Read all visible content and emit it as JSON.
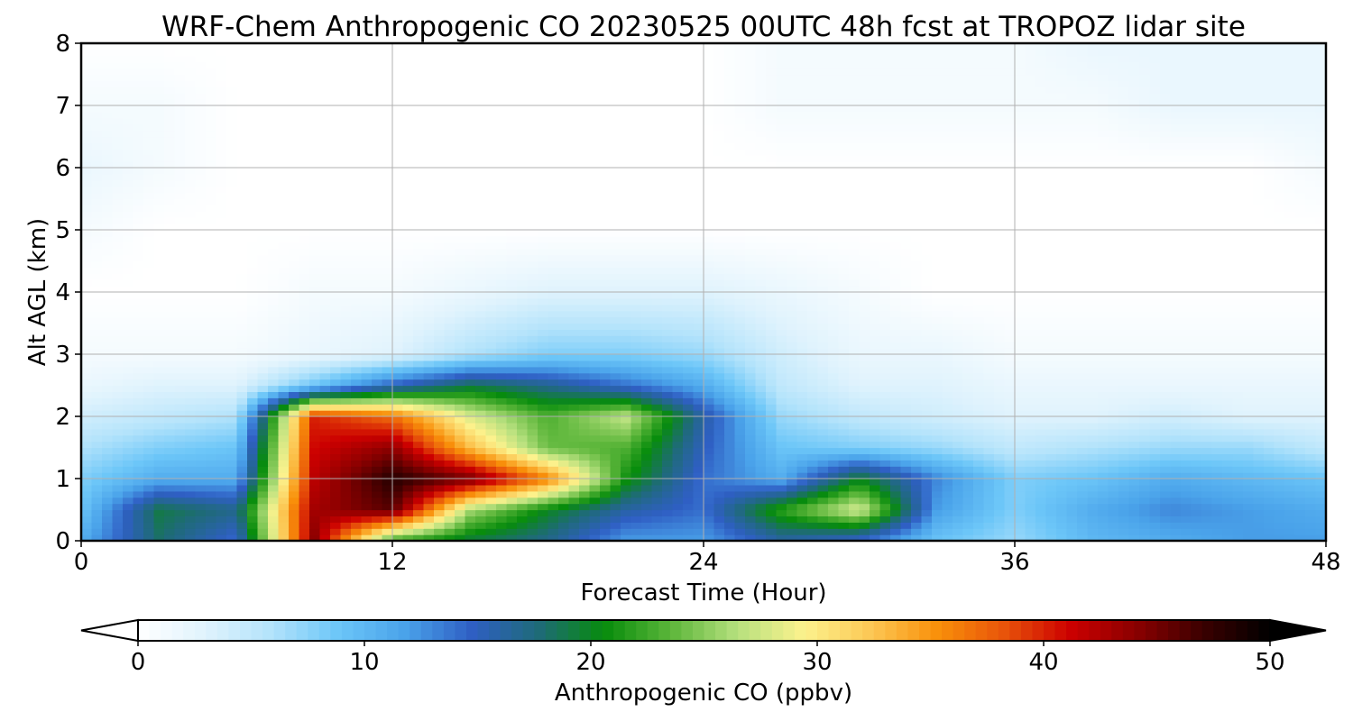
{
  "chart_data": {
    "type": "heatmap",
    "title": "WRF-Chem Anthropogenic CO  20230525 00UTC 48h fcst at TROPOZ lidar site",
    "xlabel": "Forecast Time (Hour)",
    "ylabel": "Alt AGL (km)",
    "xlim": [
      0,
      48
    ],
    "ylim": [
      0,
      8
    ],
    "xticks": [
      0,
      12,
      24,
      36,
      48
    ],
    "yticks": [
      0,
      1,
      2,
      3,
      4,
      5,
      6,
      7,
      8
    ],
    "grid": true,
    "colorbar": {
      "label": "Anthropogenic CO  (ppbv)",
      "range": [
        0,
        50
      ],
      "ticks": [
        0,
        10,
        20,
        30,
        40,
        50
      ],
      "extend": "both",
      "colors": [
        "#ffffff",
        "#e0f3fd",
        "#b3e3fb",
        "#6cc6f8",
        "#4aa3ea",
        "#2f5fc4",
        "#1f6a7a",
        "#078c0c",
        "#5cb63a",
        "#b6e07e",
        "#fcf28d",
        "#fcc855",
        "#f9900a",
        "#e8540a",
        "#cc0000",
        "#8a0000",
        "#3a0000",
        "#000000"
      ]
    },
    "times": [
      0,
      3,
      6,
      9,
      12,
      15,
      18,
      21,
      24,
      27,
      30,
      33,
      36,
      39,
      42,
      45,
      48
    ],
    "altitudes_km": [
      0,
      0.5,
      1,
      1.5,
      2,
      2.5,
      3,
      4,
      5,
      6,
      7,
      8
    ],
    "values_ppbv": [
      [
        11,
        18,
        14,
        44,
        22,
        19,
        17,
        12,
        12,
        16,
        14,
        9,
        7,
        10,
        11,
        12,
        12
      ],
      [
        9,
        19,
        17,
        43,
        46,
        26,
        20,
        16,
        14,
        22,
        28,
        12,
        8,
        11,
        13,
        12,
        11
      ],
      [
        8,
        11,
        11,
        42,
        48,
        45,
        36,
        21,
        14,
        11,
        20,
        13,
        8,
        9,
        11,
        10,
        9
      ],
      [
        6,
        8,
        9,
        41,
        44,
        33,
        24,
        23,
        15,
        9,
        8,
        7,
        5,
        6,
        7,
        7,
        5
      ],
      [
        4,
        5,
        6,
        40,
        37,
        28,
        23,
        27,
        16,
        7,
        5,
        4,
        3,
        3,
        4,
        3,
        3
      ],
      [
        2,
        3,
        3,
        9,
        15,
        19,
        17,
        14,
        11,
        5,
        3,
        3,
        2,
        2,
        2,
        2,
        2
      ],
      [
        1,
        1,
        1,
        2,
        3,
        6,
        8,
        8,
        7,
        4,
        2,
        2,
        1,
        1,
        1,
        1,
        1
      ],
      [
        0,
        0,
        0,
        1,
        1,
        2,
        3,
        3,
        3,
        2,
        1,
        0,
        0,
        0,
        0,
        0,
        0
      ],
      [
        1,
        0,
        0,
        0,
        0,
        0,
        0,
        0,
        0,
        0,
        0,
        0,
        0,
        0,
        0,
        0,
        0
      ],
      [
        2,
        1,
        0,
        0,
        0,
        0,
        0,
        0,
        0,
        0,
        0,
        0,
        0,
        0,
        0,
        0,
        1
      ],
      [
        1,
        1,
        0,
        0,
        0,
        0,
        0,
        0,
        0,
        1,
        1,
        1,
        1,
        1,
        2,
        2,
        2
      ],
      [
        0,
        0,
        0,
        0,
        0,
        0,
        0,
        0,
        0,
        1,
        1,
        1,
        1,
        2,
        2,
        2,
        2
      ]
    ]
  }
}
